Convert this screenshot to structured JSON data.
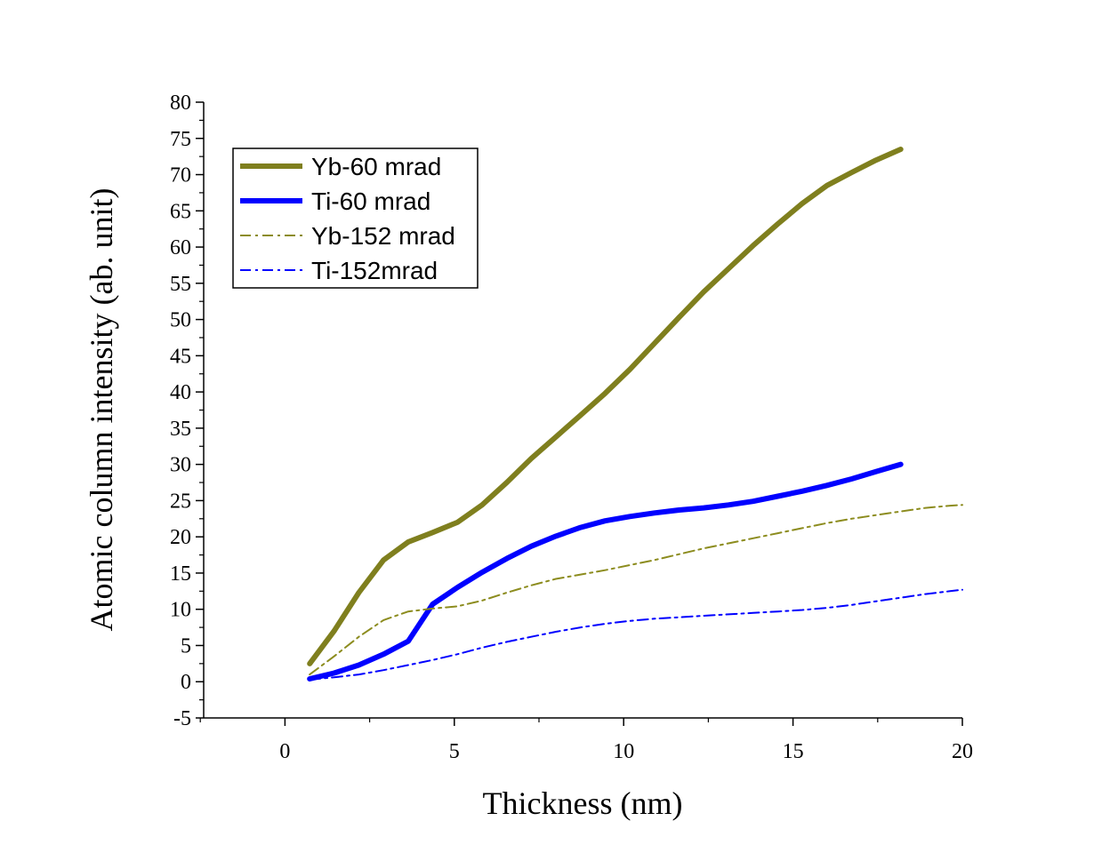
{
  "chart_data": {
    "type": "line",
    "title": "",
    "xlabel": "Thickness (nm)",
    "ylabel": "Atomic column intensity (ab. unit)",
    "xlim": [
      -2.4,
      20
    ],
    "ylim": [
      -5,
      80
    ],
    "xticks": [
      0,
      5,
      10,
      15,
      20
    ],
    "yticks": [
      -5,
      0,
      5,
      10,
      15,
      20,
      25,
      30,
      35,
      40,
      45,
      50,
      55,
      60,
      65,
      70,
      75,
      80
    ],
    "grid": false,
    "legend_position": "top-left",
    "series": [
      {
        "name": "Yb-60 mrad",
        "color": "#7f7f1e",
        "style": "solid-thick",
        "x": [
          0.73,
          1.45,
          2.18,
          2.91,
          3.64,
          4.36,
          5.09,
          5.82,
          6.55,
          7.27,
          8.0,
          8.73,
          9.45,
          10.18,
          10.91,
          11.64,
          12.36,
          13.09,
          13.82,
          14.55,
          15.27,
          16.0,
          16.73,
          17.45,
          18.18
        ],
        "y": [
          2.5,
          7.0,
          12.3,
          16.8,
          19.3,
          20.6,
          22.0,
          24.4,
          27.5,
          30.8,
          33.8,
          36.8,
          39.8,
          43.1,
          46.7,
          50.3,
          53.8,
          57.0,
          60.2,
          63.2,
          66.0,
          68.5,
          70.3,
          72.0,
          73.5
        ]
      },
      {
        "name": "Ti-60 mrad",
        "color": "#0000ff",
        "style": "solid-thick",
        "x": [
          0.73,
          1.45,
          2.18,
          2.91,
          3.64,
          4.36,
          5.09,
          5.82,
          6.55,
          7.27,
          8.0,
          8.73,
          9.45,
          10.18,
          10.91,
          11.64,
          12.36,
          13.09,
          13.82,
          14.55,
          15.27,
          16.0,
          16.73,
          17.45,
          18.18
        ],
        "y": [
          0.4,
          1.2,
          2.3,
          3.8,
          5.6,
          10.7,
          13.0,
          15.1,
          17.0,
          18.7,
          20.1,
          21.3,
          22.2,
          22.8,
          23.3,
          23.7,
          24.0,
          24.4,
          24.9,
          25.6,
          26.3,
          27.1,
          28.0,
          29.0,
          30.0
        ]
      },
      {
        "name": "Yb-152 mrad",
        "color": "#8c8c1e",
        "style": "dash-dot-thin",
        "x": [
          0.73,
          1.45,
          2.18,
          2.91,
          3.64,
          4.36,
          5.09,
          5.82,
          6.55,
          7.27,
          8.0,
          8.73,
          9.45,
          10.18,
          10.91,
          11.64,
          12.36,
          13.09,
          13.82,
          14.55,
          15.27,
          16.0,
          16.73,
          17.45,
          18.18,
          18.91,
          19.64,
          20.0
        ],
        "y": [
          1.0,
          3.5,
          6.2,
          8.5,
          9.7,
          10.1,
          10.4,
          11.2,
          12.3,
          13.3,
          14.2,
          14.8,
          15.4,
          16.1,
          16.8,
          17.6,
          18.4,
          19.1,
          19.8,
          20.5,
          21.2,
          21.9,
          22.5,
          23.0,
          23.5,
          24.0,
          24.3,
          24.4
        ]
      },
      {
        "name": "Ti-152mrad",
        "color": "#0000ff",
        "style": "dash-dot-thin",
        "x": [
          0.73,
          1.45,
          2.18,
          2.91,
          3.64,
          4.36,
          5.09,
          5.82,
          6.55,
          7.27,
          8.0,
          8.73,
          9.45,
          10.18,
          10.91,
          11.64,
          12.36,
          13.09,
          13.82,
          14.55,
          15.27,
          16.0,
          16.73,
          17.45,
          18.18,
          18.91,
          19.64,
          20.0
        ],
        "y": [
          0.3,
          0.6,
          1.0,
          1.6,
          2.3,
          3.0,
          3.8,
          4.7,
          5.5,
          6.2,
          6.9,
          7.5,
          8.0,
          8.4,
          8.7,
          8.9,
          9.1,
          9.3,
          9.5,
          9.7,
          9.9,
          10.2,
          10.6,
          11.1,
          11.6,
          12.1,
          12.5,
          12.7
        ]
      }
    ]
  }
}
